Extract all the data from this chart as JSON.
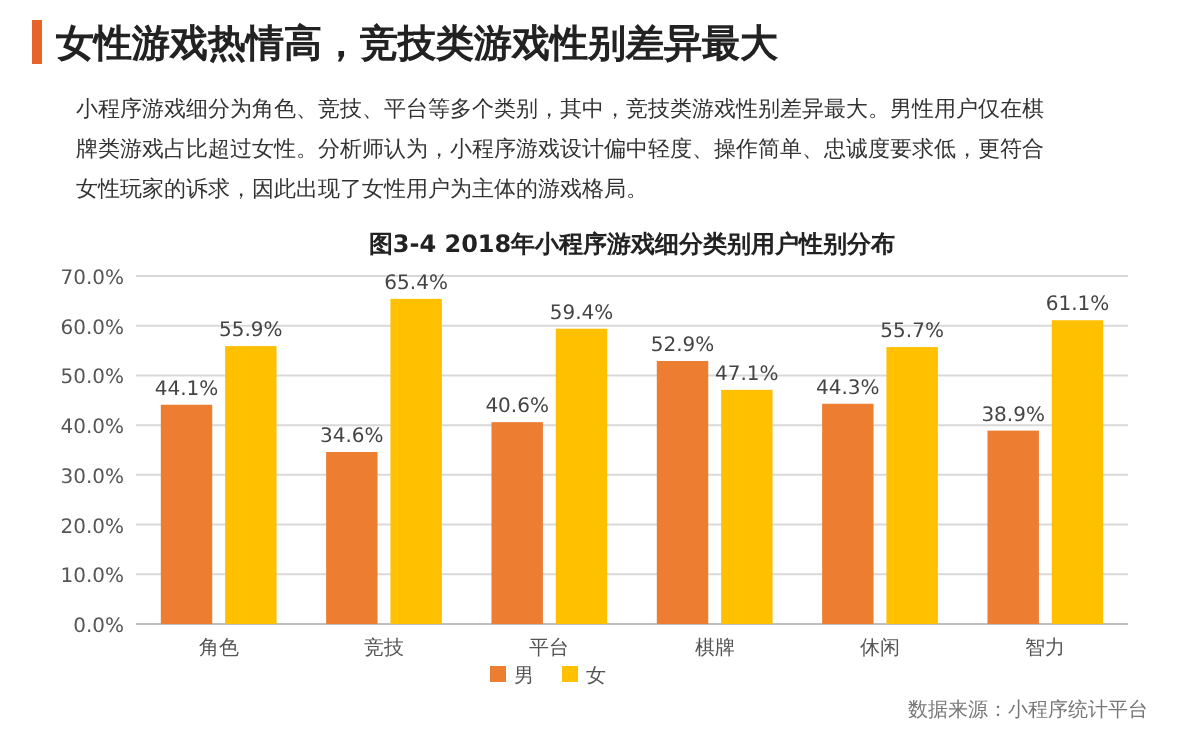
{
  "chart_data": {
    "type": "bar",
    "title": "女性游戏热情高，竞技类游戏性别差异最大",
    "subtitle": "小程序游戏细分为角色、竞技、平台等多个类别，其中，竞技类游戏性别差异最大。男性用户仅在棋牌类游戏占比超过女性。分析师认为，小程序游戏设计偏中轻度、操作简单、忠诚度要求低，更符合女性玩家的诉求，因此出现了女性用户为主体的游戏格局。",
    "annotations": [
      "图3-4 2018年小程序游戏细分类别用户性别分布",
      "数据来源：小程序统计平台"
    ],
    "categories": [
      "角色",
      "竞技",
      "平台",
      "棋牌",
      "休闲",
      "智力"
    ],
    "series": [
      {
        "name": "男",
        "color": "#ed7d31",
        "values": [
          44.1,
          34.6,
          40.6,
          52.9,
          44.3,
          38.9
        ],
        "value_labels": [
          "44.1%",
          "34.6%",
          "40.6%",
          "52.9%",
          "44.3%",
          "38.9%"
        ]
      },
      {
        "name": "女",
        "color": "#ffc000",
        "values": [
          55.9,
          65.4,
          59.4,
          47.1,
          55.7,
          61.1
        ],
        "value_labels": [
          "55.9%",
          "65.4%",
          "59.4%",
          "47.1%",
          "55.7%",
          "61.1%"
        ]
      }
    ],
    "ylim": [
      0,
      70
    ],
    "yticks": [
      {
        "value": 0,
        "label": "0.0%"
      },
      {
        "value": 10,
        "label": "10.0%"
      },
      {
        "value": 20,
        "label": "20.0%"
      },
      {
        "value": 30,
        "label": "30.0%"
      },
      {
        "value": 40,
        "label": "40.0%"
      },
      {
        "value": 50,
        "label": "50.0%"
      },
      {
        "value": 60,
        "label": "60.0%"
      },
      {
        "value": 70,
        "label": "70.0%"
      }
    ],
    "grid": "y",
    "legend": "bottom"
  }
}
